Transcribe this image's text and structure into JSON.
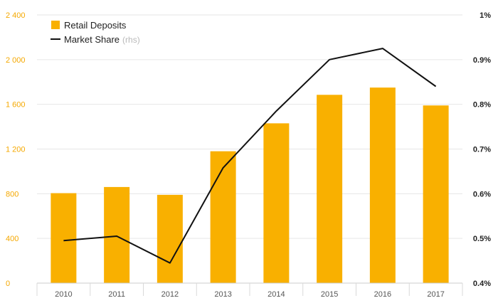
{
  "chart_data": {
    "type": "bar",
    "categories": [
      "2010",
      "2011",
      "2012",
      "2013",
      "2014",
      "2015",
      "2016",
      "2017"
    ],
    "series": [
      {
        "name": "Retail Deposits",
        "type": "bar",
        "axis": "left",
        "color": "#f9b000",
        "values": [
          805,
          860,
          790,
          1180,
          1430,
          1685,
          1750,
          1590
        ]
      },
      {
        "name": "Market Share",
        "name_note": "(rhs)",
        "type": "line",
        "axis": "right",
        "color": "#111111",
        "values": [
          0.495,
          0.505,
          0.445,
          0.658,
          0.785,
          0.9,
          0.925,
          0.84
        ]
      }
    ],
    "y_left": {
      "ylim": [
        0,
        2400
      ],
      "ticks": [
        0,
        400,
        800,
        1200,
        1600,
        2000,
        2400
      ],
      "tick_labels": [
        "0",
        "400",
        "800",
        "1 200",
        "1 600",
        "2 000",
        "2 400"
      ],
      "label_color": "#f5a800"
    },
    "y_right": {
      "ylim": [
        0.4,
        1.0
      ],
      "ticks": [
        0.4,
        0.5,
        0.6,
        0.7,
        0.8,
        0.9,
        1.0
      ],
      "tick_labels": [
        "0.4%",
        "0.5%",
        "0.6%",
        "0.7%",
        "0.8%",
        "0.9%",
        "1%"
      ]
    },
    "grid": true,
    "legend_position": "top-left",
    "title": "",
    "xlabel": "",
    "ylabel": ""
  }
}
